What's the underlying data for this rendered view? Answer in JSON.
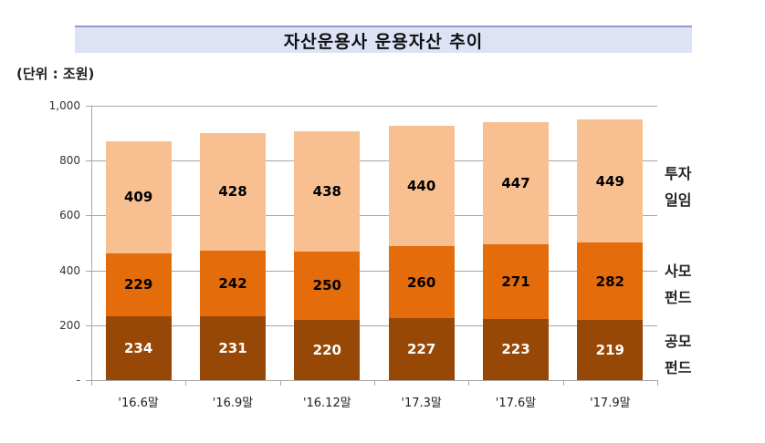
{
  "title": "자산운용사 운용자산 추이",
  "unit_label": "(단위 : 조원)",
  "colors": {
    "investment_advisory": "#f8c090",
    "private_fund": "#e46c0a",
    "public_fund": "#974706",
    "grid": "#a6a6a6",
    "title_bg": "#dde3f5"
  },
  "legend": [
    {
      "key": "investment_advisory",
      "line1": "투자",
      "line2": "일임"
    },
    {
      "key": "private_fund",
      "line1": "사모",
      "line2": "펀드"
    },
    {
      "key": "public_fund",
      "line1": "공모",
      "line2": "펀드"
    }
  ],
  "y_ticks": [
    "-",
    "200",
    "400",
    "600",
    "800",
    "1,000"
  ],
  "chart_data": {
    "type": "bar",
    "stacked": true,
    "title": "자산운용사 운용자산 추이",
    "ylabel": "(단위 : 조원)",
    "xlabel": "",
    "ylim": [
      0,
      1000
    ],
    "grid": true,
    "legend_position": "right",
    "categories": [
      "'16.6말",
      "'16.9말",
      "'16.12말",
      "'17.3말",
      "'17.6말",
      "'17.9말"
    ],
    "series": [
      {
        "name": "공모펀드",
        "color": "#974706",
        "values": [
          234,
          231,
          220,
          227,
          223,
          219
        ]
      },
      {
        "name": "사모펀드",
        "color": "#e46c0a",
        "values": [
          229,
          242,
          250,
          260,
          271,
          282
        ]
      },
      {
        "name": "투자일임",
        "color": "#f8c090",
        "values": [
          409,
          428,
          438,
          440,
          447,
          449
        ]
      }
    ]
  }
}
